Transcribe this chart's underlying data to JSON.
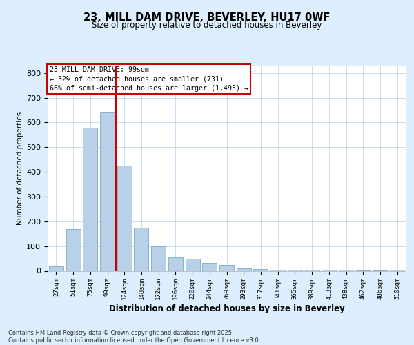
{
  "title_line1": "23, MILL DAM DRIVE, BEVERLEY, HU17 0WF",
  "title_line2": "Size of property relative to detached houses in Beverley",
  "xlabel": "Distribution of detached houses by size in Beverley",
  "ylabel": "Number of detached properties",
  "categories": [
    "27sqm",
    "51sqm",
    "75sqm",
    "99sqm",
    "124sqm",
    "148sqm",
    "172sqm",
    "196sqm",
    "220sqm",
    "244sqm",
    "269sqm",
    "293sqm",
    "317sqm",
    "341sqm",
    "365sqm",
    "389sqm",
    "413sqm",
    "438sqm",
    "462sqm",
    "486sqm",
    "510sqm"
  ],
  "values": [
    17,
    170,
    580,
    640,
    425,
    175,
    100,
    55,
    50,
    33,
    25,
    10,
    7,
    5,
    5,
    3,
    5,
    3,
    2,
    2,
    5
  ],
  "bar_color": "#b8d0e8",
  "bar_edgecolor": "#7aaac8",
  "vline_index": 3,
  "vline_color": "#cc0000",
  "annotation_line1": "23 MILL DAM DRIVE: 99sqm",
  "annotation_line2": "← 32% of detached houses are smaller (731)",
  "annotation_line3": "66% of semi-detached houses are larger (1,495) →",
  "annotation_box_edgecolor": "#cc0000",
  "ylim": [
    0,
    830
  ],
  "yticks": [
    0,
    100,
    200,
    300,
    400,
    500,
    600,
    700,
    800
  ],
  "footer_line1": "Contains HM Land Registry data © Crown copyright and database right 2025.",
  "footer_line2": "Contains public sector information licensed under the Open Government Licence v3.0.",
  "background_color": "#ddeeff",
  "plot_bg_color": "#ffffff",
  "grid_color": "#c0d8f0"
}
